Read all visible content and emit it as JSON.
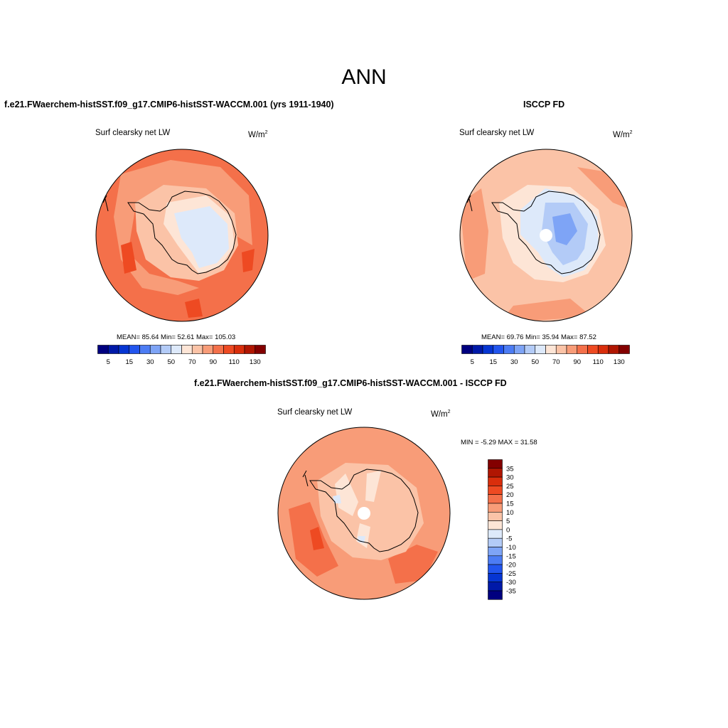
{
  "title": "ANN",
  "panels": [
    {
      "title": "f.e21.FWaerchem-histSST.f09_g17.CMIP6-histSST-WACCM.001 (yrs 1911-1940)",
      "left_label": "Surf clearsky net LW",
      "units_base": "W/m",
      "units_exp": "2",
      "stats": "MEAN=  85.64  Min=  52.61  Max= 105.03"
    },
    {
      "title": "ISCCP FD",
      "left_label": "Surf clearsky net LW",
      "units_base": "W/m",
      "units_exp": "2",
      "stats": "MEAN=  69.76  Min=  35.94  Max=  87.52"
    },
    {
      "title": "f.e21.FWaerchem-histSST.f09_g17.CMIP6-histSST-WACCM.001 - ISCCP FD",
      "left_label": "Surf clearsky net LW",
      "units_base": "W/m",
      "units_exp": "2",
      "stats": "MIN =  -5.29 MAX =  31.58"
    }
  ],
  "colorbar_abs": {
    "colors": [
      "#00007f",
      "#0019a8",
      "#0635d2",
      "#2255ee",
      "#4c7cf4",
      "#7ea4f6",
      "#b3cbf7",
      "#dde9fa",
      "#fde5d6",
      "#fbc3a7",
      "#f89c78",
      "#f4704a",
      "#ee4a22",
      "#d92e0c",
      "#b01602",
      "#830000"
    ],
    "tick_labels": [
      "5",
      "15",
      "30",
      "50",
      "70",
      "90",
      "110",
      "130"
    ]
  },
  "colorbar_diff": {
    "colors_top_to_bottom": [
      "#830000",
      "#b01602",
      "#d92e0c",
      "#ee4a22",
      "#f4704a",
      "#f89c78",
      "#fbc3a7",
      "#fde5d6",
      "#dde9fa",
      "#b3cbf7",
      "#7ea4f6",
      "#4c7cf4",
      "#2255ee",
      "#0635d2",
      "#0019a8",
      "#00007f"
    ],
    "tick_labels": [
      "35",
      "30",
      "25",
      "20",
      "15",
      "10",
      "5",
      "0",
      "-5",
      "-10",
      "-15",
      "-20",
      "-25",
      "-30",
      "-35"
    ]
  },
  "map_fields": {
    "panel1": {
      "ocean_range": "90-110",
      "antarctica_range": "50-90",
      "palette": [
        "#f4704a",
        "#f89c78",
        "#fbc3a7",
        "#fde5d6",
        "#dde9fa",
        "#ee4a22"
      ]
    },
    "panel2": {
      "ocean_range": "70-90",
      "antarctica_range": "35-70",
      "palette": [
        "#fbc3a7",
        "#f89c78",
        "#fde5d6",
        "#dde9fa",
        "#b3cbf7",
        "#7ea4f6"
      ]
    },
    "panel3": {
      "ocean_range": "15-30",
      "antarctica_range": "-5-15",
      "palette": [
        "#f89c78",
        "#f4704a",
        "#fbc3a7",
        "#fde5d6",
        "#dde9fa",
        "#ee4a22"
      ]
    }
  }
}
